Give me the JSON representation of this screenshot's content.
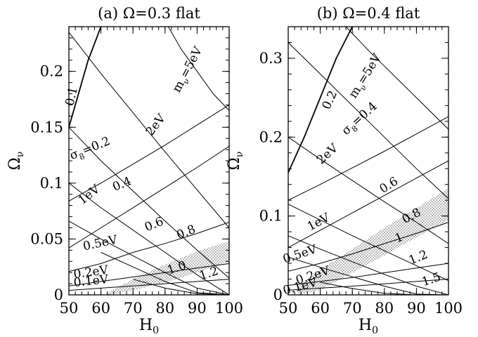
{
  "chart_data": [
    {
      "type": "line",
      "title": "(a) Ω=0.3 flat",
      "xlabel": "H",
      "xlabel_sub": "0",
      "ylabel": "Ω",
      "ylabel_sub": "ν",
      "xlim": [
        50,
        100
      ],
      "ylim": [
        0,
        0.24
      ],
      "xticks": [
        50,
        60,
        70,
        80,
        90,
        100
      ],
      "yticks": [
        0,
        0.05,
        0.1,
        0.15,
        0.2
      ],
      "ytick_labels": [
        "0",
        "0.05",
        "0.1",
        "0.15",
        "0.2"
      ],
      "neutrino_mass_curves": [
        {
          "label": "m_ν=5eV",
          "x": [
            81,
            85,
            90,
            95,
            100
          ],
          "y": [
            0.24,
            0.22,
            0.2,
            0.18,
            0.165
          ]
        },
        {
          "label": "2eV",
          "x": [
            50,
            60,
            70,
            80,
            90,
            100
          ],
          "y": [
            0.084,
            0.1,
            0.117,
            0.134,
            0.152,
            0.17
          ]
        },
        {
          "label": "1eV",
          "x": [
            50,
            60,
            70,
            80,
            90,
            100
          ],
          "y": [
            0.042,
            0.06,
            0.078,
            0.096,
            0.114,
            0.133
          ]
        },
        {
          "label": "0.5eV",
          "x": [
            50,
            60,
            70,
            80,
            90,
            100
          ],
          "y": [
            0.021,
            0.028,
            0.038,
            0.046,
            0.055,
            0.065
          ]
        },
        {
          "label": "0.2eV",
          "x": [
            50,
            60,
            70,
            80,
            90,
            100
          ],
          "y": [
            0.008,
            0.012,
            0.016,
            0.02,
            0.024,
            0.028
          ]
        },
        {
          "label": "0.1eV",
          "x": [
            50,
            60,
            70,
            80,
            90,
            100
          ],
          "y": [
            0.004,
            0.006,
            0.008,
            0.01,
            0.012,
            0.014
          ]
        }
      ],
      "sigma8_curves": [
        {
          "label": "0.1",
          "bold": true,
          "x": [
            50,
            53,
            56,
            60
          ],
          "y": [
            0.15,
            0.18,
            0.21,
            0.24
          ]
        },
        {
          "label": "σ_8=0.2",
          "x": [
            50,
            60,
            70,
            80,
            90,
            100
          ],
          "y": [
            0.235,
            0.198,
            0.163,
            0.128,
            0.094,
            0.06
          ]
        },
        {
          "label": "0.4",
          "x": [
            50,
            60,
            70,
            80,
            90,
            100
          ],
          "y": [
            0.15,
            0.12,
            0.093,
            0.066,
            0.04,
            0.015
          ]
        },
        {
          "label": "0.6",
          "x": [
            50,
            60,
            70,
            80,
            90,
            100
          ],
          "y": [
            0.1,
            0.078,
            0.058,
            0.038,
            0.018,
            0.0
          ]
        },
        {
          "label": "0.8",
          "x": [
            50,
            60,
            70,
            80,
            90,
            100
          ],
          "y": [
            0.066,
            0.05,
            0.035,
            0.02,
            0.006,
            0.0
          ]
        },
        {
          "label": "1.0",
          "x": [
            60,
            70,
            80,
            90,
            100
          ],
          "y": [
            0.038,
            0.025,
            0.012,
            0.002,
            0.0
          ]
        },
        {
          "label": "1.2",
          "x": [
            70,
            80,
            90,
            100
          ],
          "y": [
            0.014,
            0.006,
            0.001,
            0.0
          ]
        }
      ],
      "band": {
        "x": [
          62,
          70,
          80,
          90,
          100
        ],
        "lower": [
          0.0,
          0.004,
          0.011,
          0.02,
          0.03
        ],
        "upper": [
          0.002,
          0.014,
          0.027,
          0.039,
          0.048
        ]
      }
    },
    {
      "type": "line",
      "title": "(b) Ω=0.4 flat",
      "xlabel": "H",
      "xlabel_sub": "0",
      "ylabel": "Ω",
      "ylabel_sub": "ν",
      "xlim": [
        50,
        100
      ],
      "ylim": [
        0,
        0.34
      ],
      "xticks": [
        50,
        60,
        70,
        80,
        90,
        100
      ],
      "yticks": [
        0,
        0.1,
        0.2,
        0.3
      ],
      "ytick_labels": [
        "0",
        "0.1",
        "0.2",
        "0.3"
      ],
      "neutrino_mass_curves": [
        {
          "label": "m_ν=5eV",
          "x": [
            68,
            75,
            80,
            85,
            90,
            95,
            100
          ],
          "y": [
            0.34,
            0.31,
            0.29,
            0.27,
            0.25,
            0.23,
            0.21
          ]
        },
        {
          "label": "2eV",
          "x": [
            50,
            60,
            70,
            80,
            90,
            100
          ],
          "y": [
            0.12,
            0.14,
            0.161,
            0.182,
            0.204,
            0.226
          ]
        },
        {
          "label": "1eV",
          "x": [
            50,
            60,
            70,
            80,
            90,
            100
          ],
          "y": [
            0.06,
            0.082,
            0.104,
            0.126,
            0.148,
            0.17
          ]
        },
        {
          "label": "0.5eV",
          "x": [
            50,
            60,
            70,
            80,
            90,
            100
          ],
          "y": [
            0.03,
            0.04,
            0.052,
            0.065,
            0.078,
            0.092
          ]
        },
        {
          "label": "0.2eV",
          "x": [
            50,
            60,
            70,
            80,
            90,
            100
          ],
          "y": [
            0.012,
            0.017,
            0.022,
            0.028,
            0.034,
            0.04
          ]
        },
        {
          "label": "0.1eV",
          "x": [
            50,
            60,
            70,
            80,
            90,
            100
          ],
          "y": [
            0.006,
            0.0085,
            0.011,
            0.014,
            0.017,
            0.02
          ]
        }
      ],
      "sigma8_curves": [
        {
          "label": "0.2",
          "bold": true,
          "x": [
            50,
            55,
            60,
            65,
            70
          ],
          "y": [
            0.155,
            0.2,
            0.25,
            0.3,
            0.34
          ]
        },
        {
          "label": "σ_8=0.4",
          "x": [
            50,
            60,
            70,
            80,
            90,
            100
          ],
          "y": [
            0.32,
            0.28,
            0.24,
            0.2,
            0.16,
            0.122
          ]
        },
        {
          "label": "0.6",
          "x": [
            50,
            60,
            70,
            80,
            90,
            100
          ],
          "y": [
            0.2,
            0.172,
            0.145,
            0.118,
            0.092,
            0.065
          ]
        },
        {
          "label": "0.8",
          "x": [
            50,
            60,
            70,
            80,
            90,
            100
          ],
          "y": [
            0.115,
            0.095,
            0.075,
            0.056,
            0.037,
            0.018
          ]
        },
        {
          "label": "1",
          "x": [
            50,
            60,
            70,
            80,
            90,
            100
          ],
          "y": [
            0.075,
            0.058,
            0.042,
            0.026,
            0.011,
            0.0
          ]
        },
        {
          "label": "1.2",
          "x": [
            50,
            60,
            70,
            80,
            90,
            100
          ],
          "y": [
            0.048,
            0.035,
            0.023,
            0.011,
            0.001,
            0.0
          ]
        },
        {
          "label": "1.5",
          "x": [
            60,
            70,
            80,
            90,
            100
          ],
          "y": [
            0.016,
            0.008,
            0.002,
            0.0,
            0.0
          ]
        }
      ],
      "band": {
        "x": [
          53,
          60,
          70,
          80,
          90,
          100
        ],
        "lower": [
          0.0,
          0.006,
          0.028,
          0.05,
          0.073,
          0.095
        ],
        "upper": [
          0.01,
          0.032,
          0.058,
          0.085,
          0.11,
          0.135
        ]
      }
    }
  ]
}
